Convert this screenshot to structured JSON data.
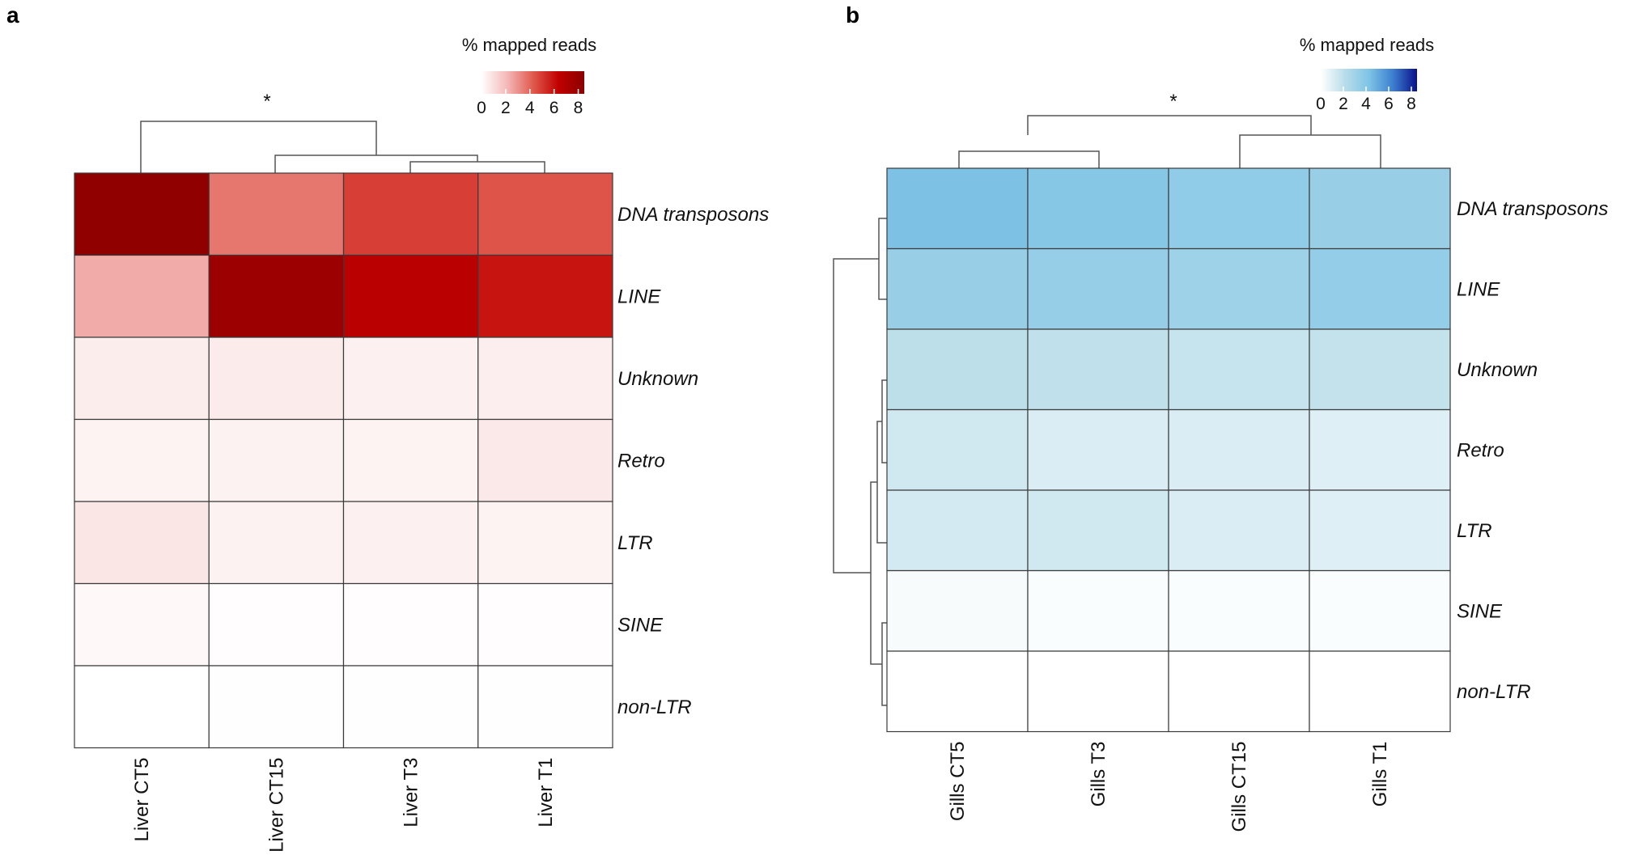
{
  "chart_data": [
    {
      "type": "heatmap",
      "panel": "a",
      "legend_title": "% mapped reads",
      "legend_ticks": [
        "0",
        "2",
        "4",
        "6",
        "8"
      ],
      "legend_range": [
        0,
        8.5
      ],
      "palette": [
        "#ffffff",
        "#f4b8b8",
        "#e05a4e",
        "#c00000",
        "#8b0000"
      ],
      "annotation": "*",
      "columns": [
        "Liver CT5",
        "Liver CT15",
        "Liver T3",
        "Liver T1"
      ],
      "rows": [
        "DNA transposons",
        "LINE",
        "Unknown",
        "Retro",
        "LTR",
        "SINE",
        "non-LTR"
      ],
      "values": [
        [
          8.3,
          3.6,
          4.9,
          4.4
        ],
        [
          2.4,
          7.8,
          6.6,
          5.9
        ],
        [
          0.55,
          0.6,
          0.45,
          0.5
        ],
        [
          0.35,
          0.4,
          0.35,
          0.7
        ],
        [
          0.75,
          0.4,
          0.45,
          0.35
        ],
        [
          0.2,
          0.05,
          0.05,
          0.05
        ],
        [
          0.0,
          0.02,
          0.02,
          0.02
        ]
      ]
    },
    {
      "type": "heatmap",
      "panel": "b",
      "legend_title": "% mapped reads",
      "legend_ticks": [
        "0",
        "2",
        "4",
        "6",
        "8"
      ],
      "legend_range": [
        0,
        8.5
      ],
      "palette": [
        "#ffffff",
        "#b8dde9",
        "#7fc4e6",
        "#3c7fd0",
        "#08108a"
      ],
      "annotation": "*",
      "columns": [
        "Gills CT5",
        "Gills T3",
        "Gills CT15",
        "Gills T1"
      ],
      "rows": [
        "DNA transposons",
        "LINE",
        "Unknown",
        "Retro",
        "LTR",
        "SINE",
        "non-LTR"
      ],
      "values": [
        [
          4.3,
          4.0,
          3.6,
          3.3
        ],
        [
          3.3,
          3.4,
          3.1,
          3.5
        ],
        [
          2.0,
          1.9,
          1.7,
          1.8
        ],
        [
          1.4,
          1.1,
          1.1,
          1.0
        ],
        [
          1.3,
          1.4,
          1.1,
          1.0
        ],
        [
          0.25,
          0.15,
          0.15,
          0.15
        ],
        [
          0.0,
          0.0,
          0.0,
          0.0
        ]
      ]
    }
  ]
}
